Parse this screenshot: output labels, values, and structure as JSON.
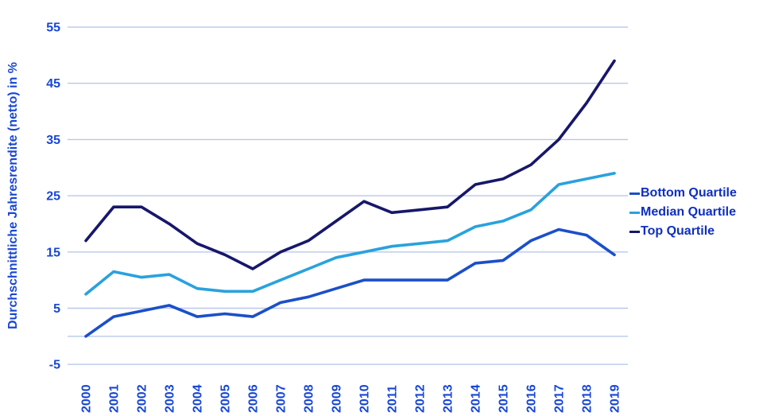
{
  "figure": {
    "background_color": "#ffffff",
    "grid_color": "#b9c7ea",
    "axis_text_color": "#1746d6",
    "legend_text_color": "#0e2fc0"
  },
  "chart_data": {
    "type": "line",
    "title": "",
    "xlabel": "",
    "ylabel": "Durchschnittliche Jahresrendite (netto) in %",
    "x": [
      2000,
      2001,
      2002,
      2003,
      2004,
      2005,
      2006,
      2007,
      2008,
      2009,
      2010,
      2011,
      2012,
      2013,
      2014,
      2015,
      2016,
      2017,
      2018,
      2019
    ],
    "series": [
      {
        "name": "Bottom Quartile",
        "color": "#1b4fca",
        "values": [
          0,
          3.5,
          4.5,
          5.5,
          3.5,
          4,
          3.5,
          6,
          7,
          8.5,
          10,
          10,
          10,
          10,
          13,
          13.5,
          17,
          19,
          18,
          14.5
        ]
      },
      {
        "name": "Median Quartile",
        "color": "#29a2dd",
        "values": [
          7.5,
          11.5,
          10.5,
          11,
          8.5,
          8,
          8,
          10,
          12,
          14,
          15,
          16,
          16.5,
          17,
          19.5,
          20.5,
          22.5,
          27,
          28,
          29
        ]
      },
      {
        "name": "Top Quartile",
        "color": "#17176b",
        "values": [
          17,
          23,
          23,
          20,
          16.5,
          14.5,
          12,
          15,
          17,
          20.5,
          24,
          22,
          22.5,
          23,
          27,
          28,
          30.5,
          35,
          41.5,
          49
        ]
      }
    ],
    "ylim": [
      -5,
      55
    ],
    "yticks": [
      55,
      45,
      35,
      25,
      15,
      5,
      -5
    ],
    "baseline": 0,
    "grid": "horizontal",
    "legend_position": "right"
  }
}
